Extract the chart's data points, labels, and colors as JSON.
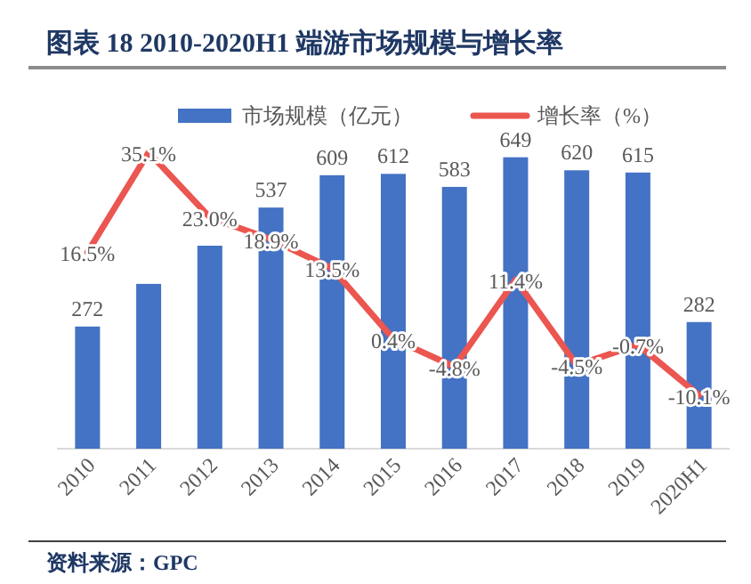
{
  "chart_data": {
    "type": "bar",
    "title": "图表 18   2010-2020H1 端游市场规模与增长率",
    "categories": [
      "2010",
      "2011",
      "2012",
      "2013",
      "2014",
      "2015",
      "2016",
      "2017",
      "2018",
      "2019",
      "2020H1"
    ],
    "tick_labels": "x",
    "legend": "top",
    "series": [
      {
        "name": "市场规模（亿元）",
        "color": "#4472c4",
        "values": [
          272,
          367,
          452,
          537,
          609,
          612,
          583,
          649,
          620,
          615,
          282
        ],
        "value_labels": [
          "272",
          null,
          null,
          "537",
          "609",
          "612",
          "583",
          "649",
          "620",
          "615",
          "282"
        ]
      },
      {
        "name": "增长率（%）",
        "type": "line",
        "axis": "y2",
        "color": "#eb5650",
        "values": [
          16.5,
          35.1,
          23.0,
          18.9,
          13.5,
          0.4,
          -4.8,
          11.4,
          -4.5,
          -0.7,
          -10.1
        ],
        "value_labels": [
          "16.5%",
          "35.1%",
          "23.0%",
          "18.9%",
          "13.5%",
          "0.4%",
          "-4.8%",
          "11.4%",
          "-4.5%",
          "-0.7%",
          "-10.1%"
        ]
      }
    ],
    "annotations": [
      "资料来源：GPC"
    ]
  }
}
